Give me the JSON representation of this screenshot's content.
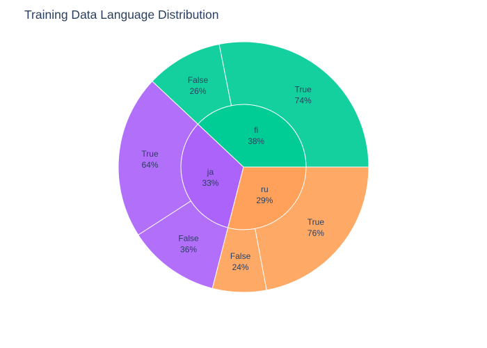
{
  "chart_data": {
    "type": "sunburst",
    "title": "Training Data Language Distribution",
    "start_angle_deg": 0,
    "direction": "counterclockwise",
    "nodes": [
      {
        "name": "fi",
        "percent_label": "38%",
        "value": 38,
        "color": "#00cc96",
        "children": [
          {
            "name": "True",
            "percent_label": "74%",
            "value": 74
          },
          {
            "name": "False",
            "percent_label": "26%",
            "value": 26
          }
        ]
      },
      {
        "name": "ja",
        "percent_label": "33%",
        "value": 33,
        "color": "#ab63fa",
        "children": [
          {
            "name": "True",
            "percent_label": "64%",
            "value": 64
          },
          {
            "name": "False",
            "percent_label": "36%",
            "value": 36
          }
        ]
      },
      {
        "name": "ru",
        "percent_label": "29%",
        "value": 29,
        "color": "#ffa15a",
        "children": [
          {
            "name": "False",
            "percent_label": "24%",
            "value": 24
          },
          {
            "name": "True",
            "percent_label": "76%",
            "value": 76
          }
        ]
      }
    ]
  }
}
